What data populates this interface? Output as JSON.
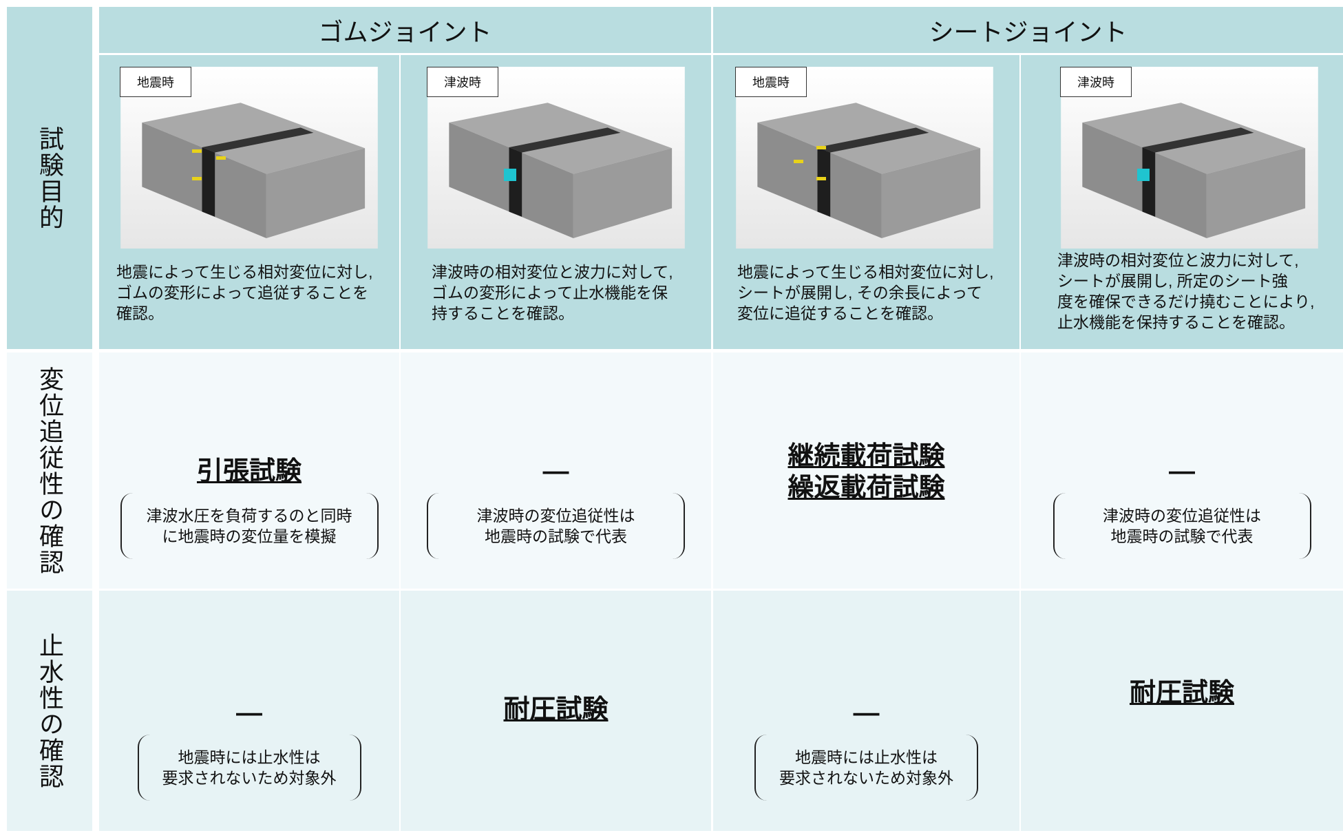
{
  "row_labels": [
    "試験目的",
    "変位追従性の確認",
    "止水性の確認"
  ],
  "columns": [
    "ゴムジョイント",
    "シートジョイント"
  ],
  "purpose": [
    {
      "tag": "地震時",
      "text": "地震によって生じる相対変位に対し,\nゴムの変形によって追従することを\n確認。"
    },
    {
      "tag": "津波時",
      "text": "津波時の相対変位と波力に対して,\nゴムの変形によって止水機能を保\n持することを確認。"
    },
    {
      "tag": "地震時",
      "text": "地震によって生じる相対変位に対し,\nシートが展開し, その余長によって\n変位に追従することを確認。"
    },
    {
      "tag": "津波時",
      "text": "津波時の相対変位と波力に対して,\nシートが展開し, 所定のシート強\n度を確保できるだけ撓むことにより,\n止水機能を保持することを確認。"
    }
  ],
  "displacement": [
    {
      "test": "引張試験",
      "note": "津波水圧を負荷するのと同時\nに地震時の変位量を模擬"
    },
    {
      "test": "—",
      "note": "津波時の変位追従性は\n地震時の試験で代表"
    },
    {
      "test": "継続載荷試験\n繰返載荷試験"
    },
    {
      "test": "—",
      "note": "津波時の変位追従性は\n地震時の試験で代表"
    }
  ],
  "watertight": [
    {
      "test": "—",
      "note": "地震時には止水性は\n要求されないため対象外"
    },
    {
      "test": "耐圧試験"
    },
    {
      "test": "—",
      "note": "地震時には止水性は\n要求されないため対象外"
    },
    {
      "test": "耐圧試験"
    }
  ]
}
